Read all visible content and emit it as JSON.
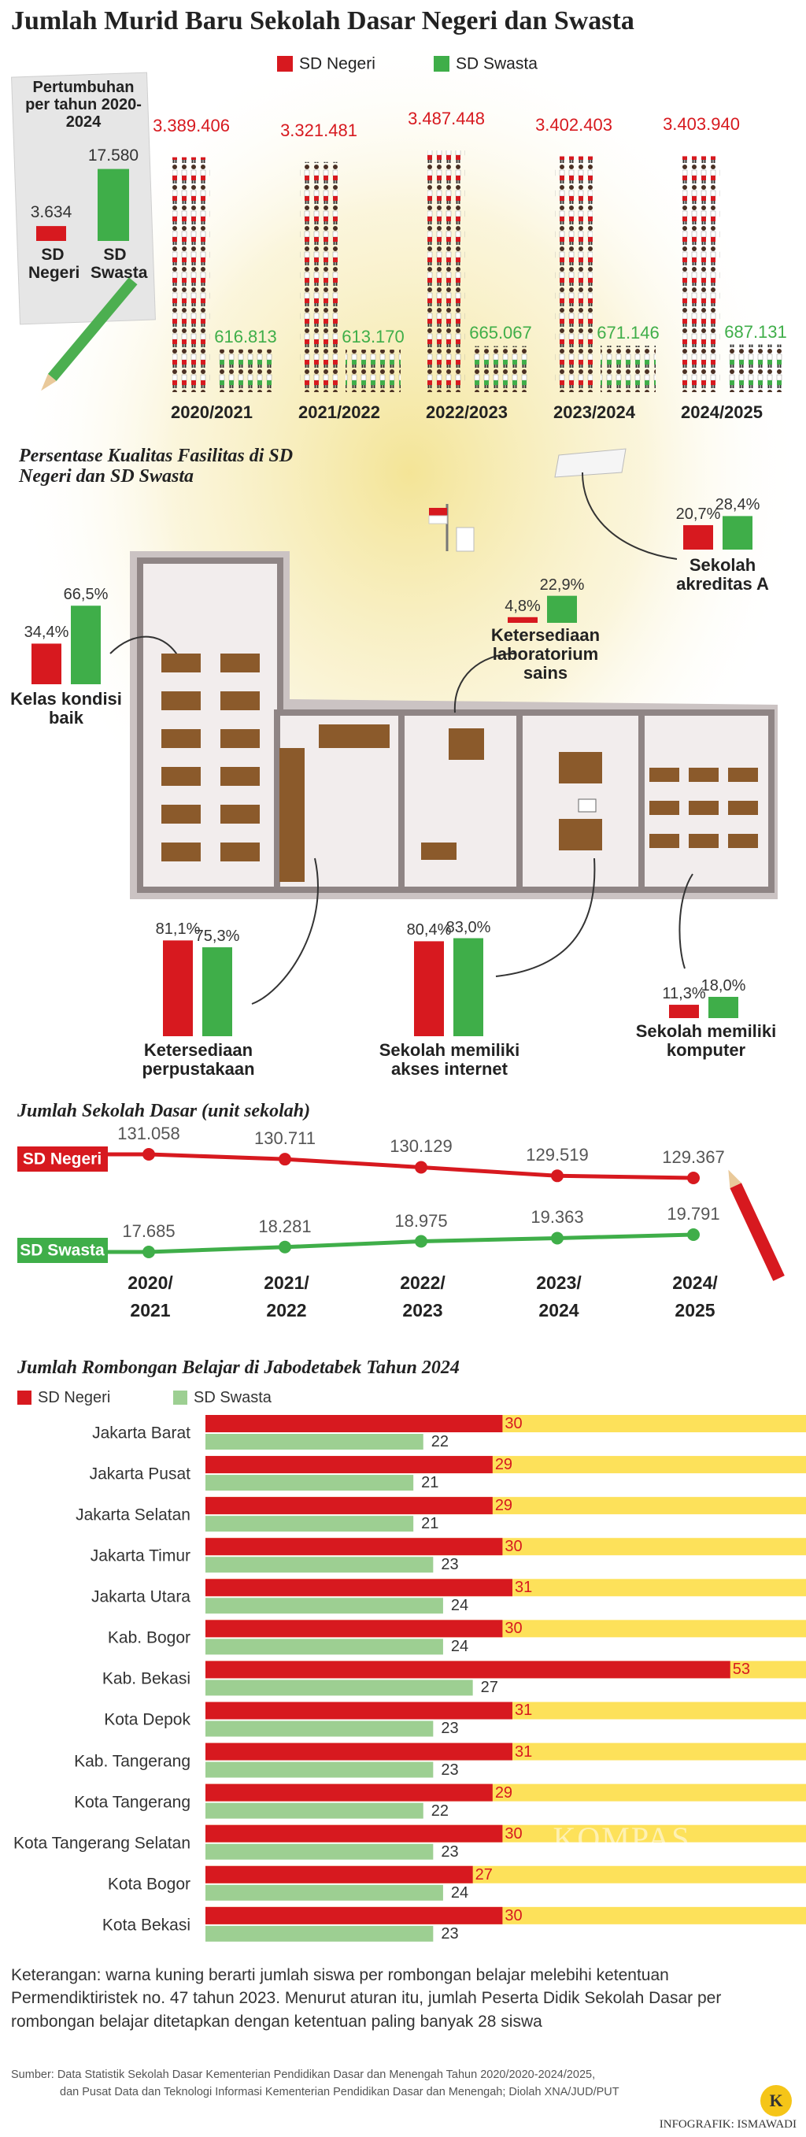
{
  "title": "Jumlah Murid Baru Sekolah Dasar Negeri dan Swasta",
  "chart_data": [
    {
      "type": "pictogram",
      "categories": [
        "2020/2021",
        "2021/2022",
        "2022/2023",
        "2023/2024",
        "2024/2025"
      ],
      "series": [
        {
          "name": "SD Negeri",
          "color": "#d7191f",
          "values": [
            3389406,
            3321481,
            3487448,
            3402403,
            3403940
          ],
          "value_labels": [
            "3.389.406",
            "3.321.481",
            "3.487.448",
            "3.402.403",
            "3.403.940"
          ]
        },
        {
          "name": "SD Swasta",
          "color": "#3fae49",
          "values": [
            616813,
            613170,
            665067,
            671146,
            687131
          ],
          "value_labels": [
            "616.813",
            "613.170",
            "665.067",
            "671.146",
            "687.131"
          ]
        }
      ]
    },
    {
      "type": "bar",
      "title": "Pertumbuhan per tahun 2020-2024",
      "categories": [
        "SD Negeri",
        "SD Swasta"
      ],
      "values": [
        3634,
        17580
      ],
      "value_labels": [
        "3.634",
        "17.580"
      ],
      "colors": [
        "#d7191f",
        "#3fae49"
      ]
    },
    {
      "type": "bar",
      "title": "Persentase Kualitas Fasilitas di SD Negeri dan SD Swasta",
      "categories": [
        "Sekolah akreditas A",
        "Ketersediaan laboratorium sains",
        "Kelas kondisi baik",
        "Ketersediaan perpustakaan",
        "Sekolah memiliki akses internet",
        "Sekolah memiliki komputer"
      ],
      "series": [
        {
          "name": "SD Negeri",
          "color": "#d7191f",
          "values": [
            20.7,
            4.8,
            34.4,
            81.1,
            80.4,
            11.3
          ],
          "value_labels": [
            "20,7%",
            "4,8%",
            "34,4%",
            "81,1%",
            "80,4%",
            "11,3%"
          ]
        },
        {
          "name": "SD Swasta",
          "color": "#3fae49",
          "values": [
            28.4,
            22.9,
            66.5,
            75.3,
            83.0,
            18.0
          ],
          "value_labels": [
            "28,4%",
            "22,9%",
            "66,5%",
            "75,3%",
            "83,0%",
            "18,0%"
          ]
        }
      ]
    },
    {
      "type": "line",
      "title": "Jumlah Sekolah Dasar (unit sekolah)",
      "categories": [
        "2020/2021",
        "2021/2022",
        "2022/2023",
        "2023/2024",
        "2024/2025"
      ],
      "series": [
        {
          "name": "SD Negeri",
          "color": "#d7191f",
          "values": [
            131058,
            130711,
            130129,
            129519,
            129367
          ],
          "value_labels": [
            "131.058",
            "130.711",
            "130.129",
            "129.519",
            "129.367"
          ]
        },
        {
          "name": "SD Swasta",
          "color": "#3fae49",
          "values": [
            17685,
            18281,
            18975,
            19363,
            19791
          ],
          "value_labels": [
            "17.685",
            "18.281",
            "18.975",
            "19.363",
            "19.791"
          ]
        }
      ]
    },
    {
      "type": "barh",
      "title": "Jumlah Rombongan Belajar di Jabodetabek Tahun 2024",
      "categories": [
        "Jakarta Barat",
        "Jakarta Pusat",
        "Jakarta Selatan",
        "Jakarta Timur",
        "Jakarta Utara",
        "Kab. Bogor",
        "Kab. Bekasi",
        "Kota Depok",
        "Kab. Tangerang",
        "Kota Tangerang",
        "Kota Tangerang Selatan",
        "Kota Bogor",
        "Kota Bekasi"
      ],
      "series": [
        {
          "name": "SD Negeri",
          "color": "#d7191f",
          "values": [
            30,
            29,
            29,
            30,
            31,
            30,
            53,
            31,
            31,
            29,
            30,
            27,
            30
          ]
        },
        {
          "name": "SD Swasta",
          "color": "#9dcf92",
          "values": [
            22,
            21,
            21,
            23,
            24,
            24,
            27,
            23,
            23,
            22,
            23,
            24,
            23
          ]
        }
      ],
      "highlight_color": "#fde15a"
    }
  ],
  "note": "Keterangan: warna kuning berarti jumlah siswa per rombongan belajar melebihi ketentuan Permendiktiristek no. 47 tahun 2023. Menurut aturan itu, jumlah Peserta Didik Sekolah Dasar per rombongan belajar ditetapkan dengan ketentuan paling banyak 28 siswa",
  "source": [
    "Sumber: Data Statistik Sekolah Dasar Kementerian Pendidikan Dasar dan Menengah Tahun 2020/2020-2024/2025,",
    "dan Pusat Data dan Teknologi Informasi Kementerian Pendidikan Dasar dan Menengah; Diolah XNA/JUD/PUT"
  ],
  "watermark": "KOMPAS",
  "logo": "K",
  "credit": "INFOGRAFIK: ISMAWADI"
}
